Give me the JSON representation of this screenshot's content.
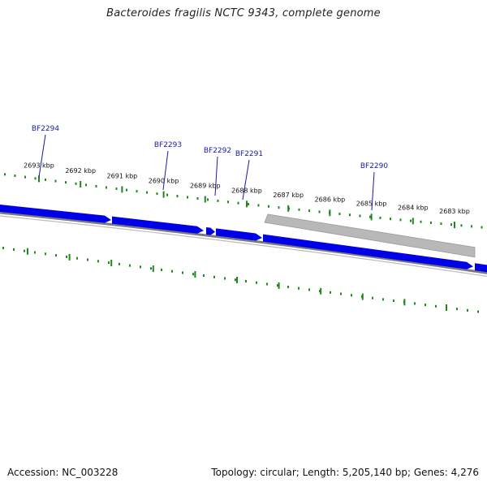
{
  "title": "Bacteroides fragilis NCTC 9343, complete genome",
  "colors": {
    "forward_gene": "#0000e8",
    "reverse_gene": "#b8b8b8",
    "backbone": "#7a7a7a",
    "ticks": "#1a8a1a",
    "gene_label": "#1a1aa6"
  },
  "scale": {
    "unit": "kbp",
    "labels": [
      "2693 kbp",
      "2692 kbp",
      "2691 kbp",
      "2690 kbp",
      "2689 kbp",
      "2688 kbp",
      "2687 kbp",
      "2686 kbp",
      "2685 kbp",
      "2684 kbp",
      "2683 kbp"
    ]
  },
  "genes": [
    {
      "name": "BF2294"
    },
    {
      "name": "BF2293"
    },
    {
      "name": "BF2292"
    },
    {
      "name": "BF2291"
    },
    {
      "name": "BF2290"
    }
  ],
  "footer": {
    "accession": "Accession: NC_003228",
    "summary": "Topology: circular; Length: 5,205,140 bp; Genes: 4,276"
  }
}
